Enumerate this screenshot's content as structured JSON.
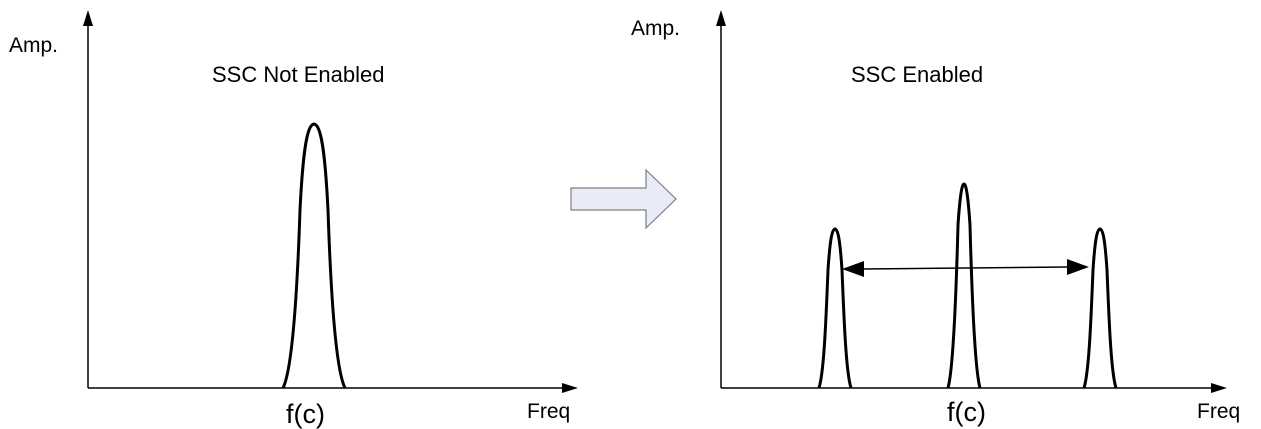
{
  "left_panel": {
    "title": "SSC Not Enabled",
    "y_axis_label": "Amp.",
    "x_axis_label": "Freq",
    "center_label": "f(c)"
  },
  "right_panel": {
    "title": "SSC Enabled",
    "y_axis_label": "Amp.",
    "x_axis_label": "Freq",
    "center_label": "f(c)"
  },
  "transition_arrow_icon": "right-arrow-icon",
  "colors": {
    "line": "#000000",
    "arrow_fill": "#e8ecf7",
    "arrow_stroke": "#7f7f7f"
  }
}
